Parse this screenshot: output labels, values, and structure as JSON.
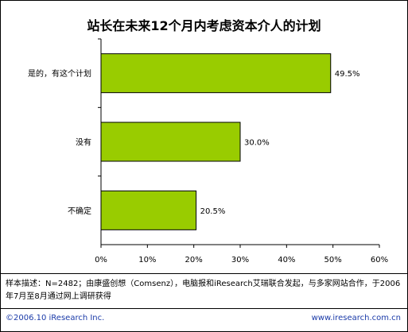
{
  "chart_data": {
    "type": "bar",
    "orientation": "horizontal",
    "title": "站长在未来12个月内考虑资本介人的计划",
    "categories": [
      "是的，有这个计划",
      "没有",
      "不确定"
    ],
    "values": [
      49.5,
      30.0,
      20.5
    ],
    "value_labels": [
      "49.5%",
      "30.0%",
      "20.5%"
    ],
    "xlim": [
      0,
      60
    ],
    "ticks": [
      0,
      10,
      20,
      30,
      40,
      50,
      60
    ],
    "tick_labels": [
      "0%",
      "10%",
      "20%",
      "30%",
      "40%",
      "50%",
      "60%"
    ],
    "grid": false,
    "bar_color": "#99cc00"
  },
  "note": "样本描述：N=2482；由康盛创想（Comsenz），电脑报和iResearch艾瑞联合发起，与多家网站合作，于2006年7月至8月通过网上调研获得",
  "footer": {
    "left": "©2006.10 iResearch Inc.",
    "right": "www.iresearch.com.cn"
  }
}
